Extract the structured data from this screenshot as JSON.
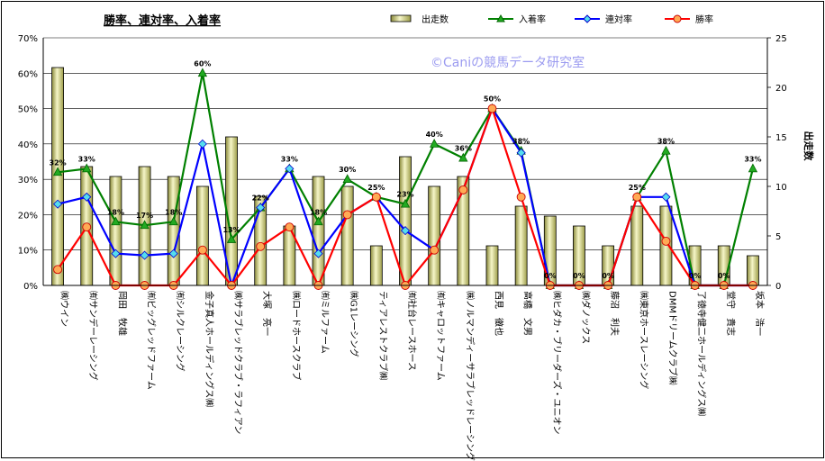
{
  "chart_data": {
    "type": "bar+line",
    "title": "勝率、連対率、入着率",
    "watermark": "©Caniの競馬データ研究室",
    "y2label": "出走数",
    "ylim": [
      0,
      70
    ],
    "y2lim": [
      0,
      25
    ],
    "yticks": [
      "0%",
      "10%",
      "20%",
      "30%",
      "40%",
      "50%",
      "60%",
      "70%"
    ],
    "y2ticks": [
      "0",
      "5",
      "10",
      "15",
      "20",
      "25"
    ],
    "categories": [
      "㈱ウイン",
      "㈲サンデーレーシング",
      "岡田　牧雄",
      "㈲ビッグレッドファーム",
      "㈲シルクレーシング",
      "金子真人ホールディングス㈱",
      "㈱サラブレッドクラブ・ラフィアン",
      "大塚　亮一",
      "㈱ロードホースクラブ",
      "㈲ミルファーム",
      "㈱G1レーシング",
      "ティアレストクラブ㈱",
      "㈲社台レースホース",
      "㈲キャロットファーム",
      "㈱ノルマンディーサラブレッドレーシング",
      "西見　徹也",
      "高橋　文男",
      "㈱ヒダカ・ブリーダーズ・ユニオン",
      "㈱ダノックス",
      "藤沼　利夫",
      "㈱東京ホースレーシング",
      "DMMドリームクラブ㈱",
      "了徳寺健二ホールディングス㈱",
      "堂守　貴志",
      "坂本　浩一"
    ],
    "series": [
      {
        "name": "出走数",
        "type": "bar",
        "axis": "right",
        "color": "#cccc66",
        "values": [
          22,
          12,
          11,
          12,
          11,
          10,
          15,
          9,
          6,
          11,
          10,
          4,
          13,
          10,
          11,
          4,
          8,
          7,
          6,
          4,
          8,
          8,
          4,
          4,
          3
        ]
      },
      {
        "name": "入着率",
        "type": "line",
        "axis": "left",
        "color": "#008000",
        "values": [
          32,
          33,
          18,
          17,
          18,
          60,
          13,
          22,
          33,
          18,
          30,
          25,
          23,
          40,
          36,
          50,
          38,
          0,
          0,
          0,
          25,
          38,
          0,
          0,
          33
        ],
        "labels": [
          "32%",
          "33%",
          "18%",
          "17%",
          "18%",
          "60%",
          "13%",
          "22%",
          "33%",
          "18%",
          "30%",
          "25%",
          "23%",
          "40%",
          "36%",
          "50%",
          "38%",
          "0%",
          "0%",
          "0%",
          "25%",
          "38%",
          "0%",
          "0%",
          "33%"
        ]
      },
      {
        "name": "連対率",
        "type": "line",
        "axis": "left",
        "color": "#0000ff",
        "values": [
          23,
          25,
          9,
          8.5,
          9,
          40,
          0,
          22,
          33,
          9,
          20,
          25,
          15.5,
          10,
          27,
          50,
          37.5,
          0,
          0,
          0,
          25,
          25,
          0,
          0,
          0
        ]
      },
      {
        "name": "勝率",
        "type": "line",
        "axis": "left",
        "color": "#ff0000",
        "values": [
          4.5,
          16.5,
          0,
          0,
          0,
          10,
          0,
          11,
          16.5,
          0,
          20,
          25,
          0,
          10,
          27,
          50,
          25,
          0,
          0,
          0,
          25,
          12.5,
          0,
          0,
          0
        ]
      }
    ]
  }
}
